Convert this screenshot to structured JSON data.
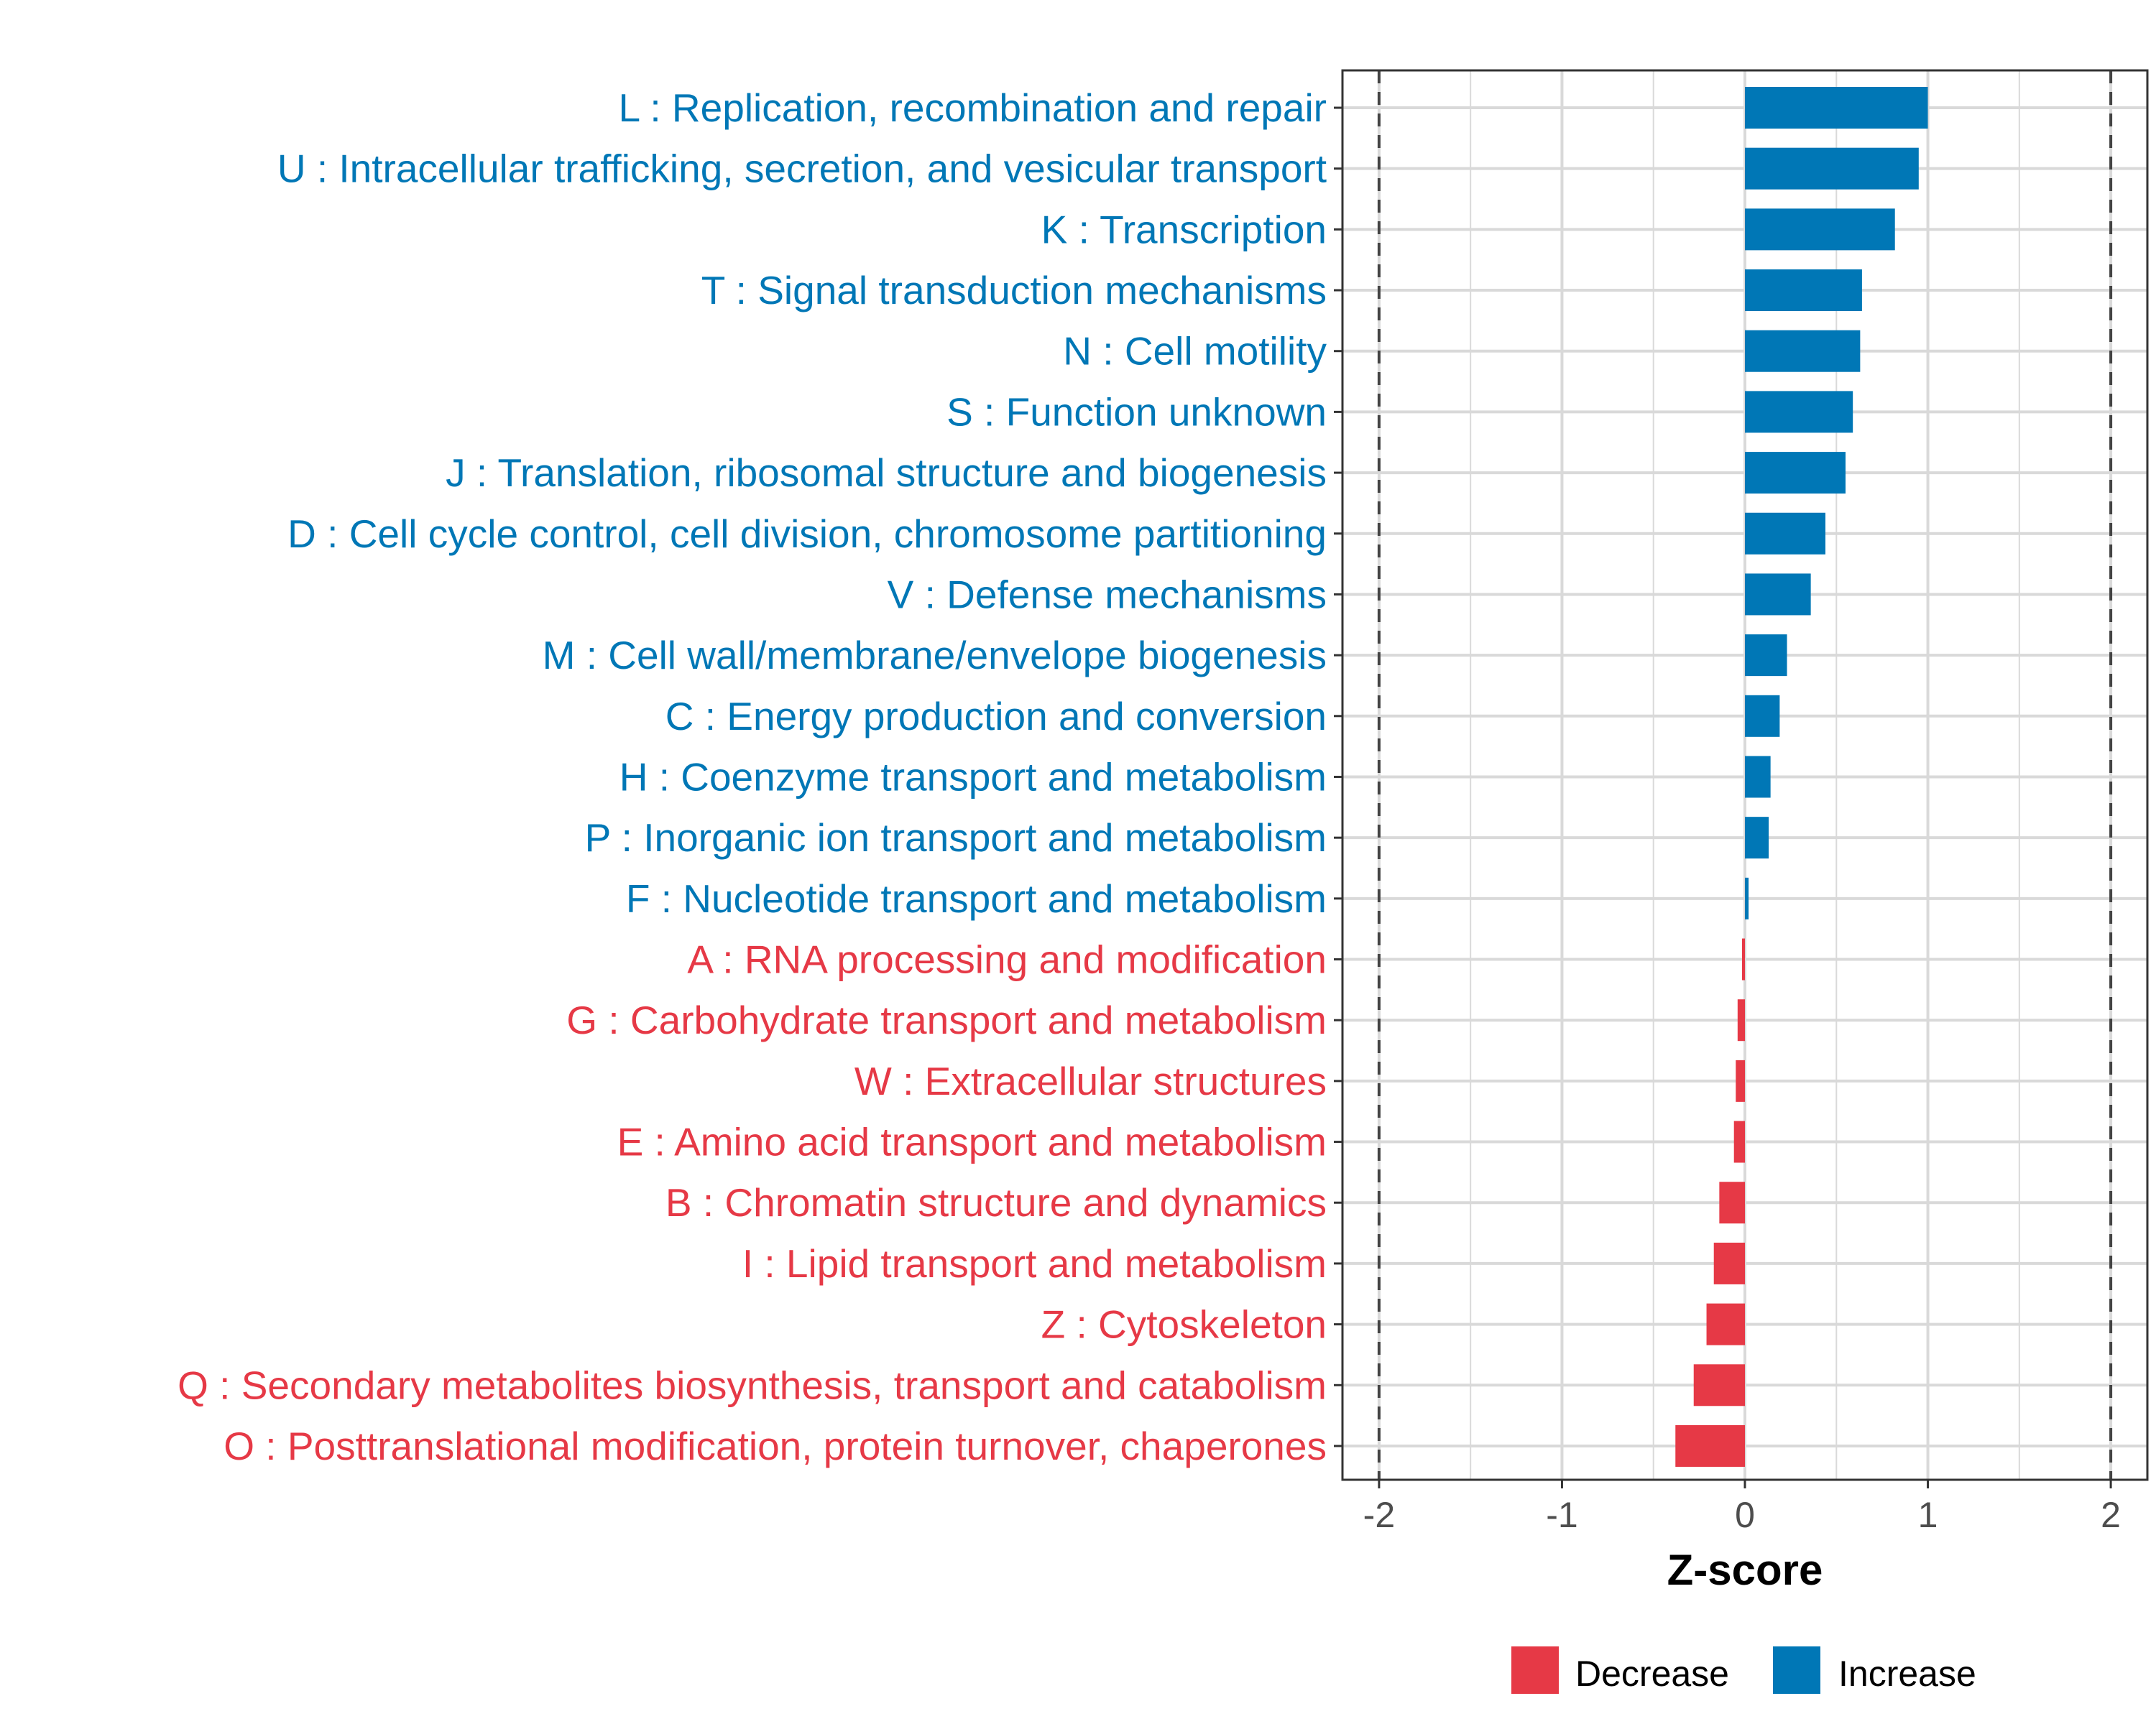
{
  "chart_data": {
    "type": "bar",
    "orientation": "horizontal",
    "title": "",
    "xlabel": "Z-score",
    "ylabel": "",
    "xlim": [
      -2.2,
      2.2
    ],
    "x_ticks": [
      -2,
      -1,
      0,
      1,
      2
    ],
    "x_tick_labels": [
      "-2",
      "-1",
      "0",
      "1",
      "2"
    ],
    "threshold_lines": [
      -2,
      2
    ],
    "grid": true,
    "colors": {
      "Decrease": "#E63946",
      "Increase": "#0077B6"
    },
    "legend": {
      "position": "bottom",
      "entries": [
        {
          "label": "Decrease",
          "color": "#E63946"
        },
        {
          "label": "Increase",
          "color": "#0077B6"
        }
      ]
    },
    "categories": [
      "L : Replication, recombination and repair",
      "U : Intracellular trafficking, secretion, and vesicular transport",
      "K : Transcription",
      "T : Signal transduction mechanisms",
      "N : Cell motility",
      "S : Function unknown",
      "J : Translation, ribosomal structure and biogenesis",
      "D : Cell cycle control, cell division, chromosome partitioning",
      "V : Defense mechanisms",
      "M : Cell wall/membrane/envelope biogenesis",
      "C : Energy production and conversion",
      "H : Coenzyme transport and metabolism",
      "P : Inorganic ion transport and metabolism",
      "F : Nucleotide transport and metabolism",
      "A : RNA processing and modification",
      "G : Carbohydrate transport and metabolism",
      "W : Extracellular structures",
      "E : Amino acid transport and metabolism",
      "B : Chromatin structure and dynamics",
      "I : Lipid transport and metabolism",
      "Z : Cytoskeleton",
      "Q : Secondary metabolites biosynthesis, transport and catabolism",
      "O : Posttranslational modification, protein turnover, chaperones"
    ],
    "values": [
      1.0,
      0.95,
      0.82,
      0.64,
      0.63,
      0.59,
      0.55,
      0.44,
      0.36,
      0.23,
      0.19,
      0.14,
      0.13,
      0.02,
      -0.01,
      -0.04,
      -0.05,
      -0.06,
      -0.14,
      -0.17,
      -0.21,
      -0.28,
      -0.38
    ],
    "direction": [
      "Increase",
      "Increase",
      "Increase",
      "Increase",
      "Increase",
      "Increase",
      "Increase",
      "Increase",
      "Increase",
      "Increase",
      "Increase",
      "Increase",
      "Increase",
      "Increase",
      "Decrease",
      "Decrease",
      "Decrease",
      "Decrease",
      "Decrease",
      "Decrease",
      "Decrease",
      "Decrease",
      "Decrease"
    ]
  }
}
